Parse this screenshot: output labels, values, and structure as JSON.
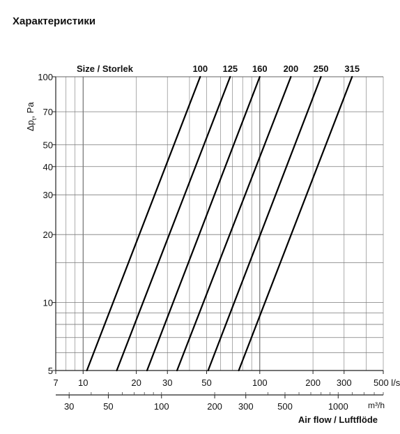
{
  "page": {
    "heading": "Характеристики"
  },
  "chart_data": {
    "type": "line",
    "x_scale": "log",
    "y_scale": "log",
    "ylabel": "Δp_t, Pa",
    "ylabel_main": "Δp",
    "ylabel_sub": "t",
    "ylabel_rest": ", Pa",
    "xlabel": "Air flow / Luftflöde",
    "legend_title": "Size  /  Storlek",
    "xlim_ls": [
      7,
      500
    ],
    "ylim": [
      5,
      100
    ],
    "y_ticks": [
      5,
      10,
      20,
      30,
      40,
      50,
      70,
      100
    ],
    "x_ticks_ls": [
      7,
      10,
      20,
      30,
      50,
      100,
      200,
      300,
      500
    ],
    "x_tick_labels_ls": [
      "7",
      "10",
      "20",
      "30",
      "50",
      "100",
      "200",
      "300",
      "500 l/s"
    ],
    "x_ticks_m3h": [
      30,
      50,
      100,
      200,
      300,
      500,
      1000
    ],
    "x_tick_labels_m3h": [
      "30",
      "50",
      "100",
      "200",
      "300",
      "500",
      "1000"
    ],
    "x_unit_m3h": "m³/h",
    "series": [
      {
        "name": "100",
        "points": [
          [
            10.5,
            5
          ],
          [
            46,
            100
          ]
        ]
      },
      {
        "name": "125",
        "points": [
          [
            15.5,
            5
          ],
          [
            68,
            100
          ]
        ]
      },
      {
        "name": "160",
        "points": [
          [
            23,
            5
          ],
          [
            100,
            100
          ]
        ]
      },
      {
        "name": "200",
        "points": [
          [
            34,
            5
          ],
          [
            150,
            100
          ]
        ]
      },
      {
        "name": "250",
        "points": [
          [
            51,
            5
          ],
          [
            222,
            100
          ]
        ]
      },
      {
        "name": "315",
        "points": [
          [
            76,
            5
          ],
          [
            333,
            100
          ]
        ]
      }
    ]
  }
}
